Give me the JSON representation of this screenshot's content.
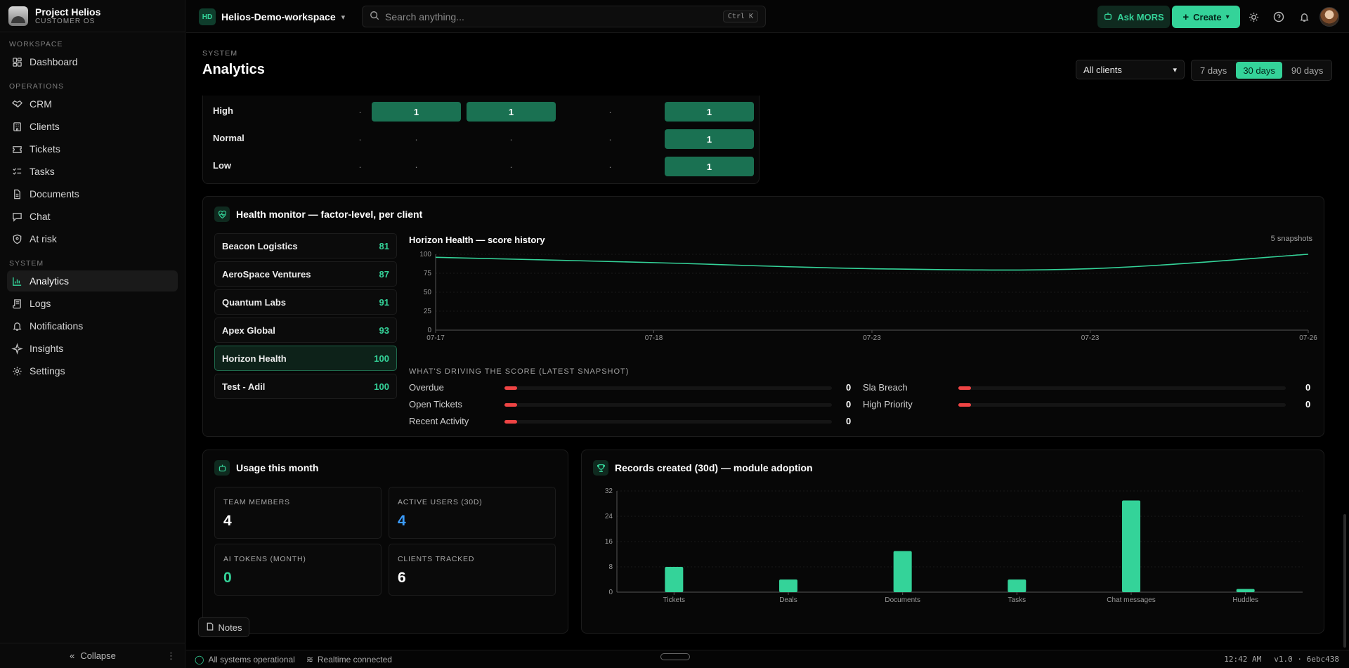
{
  "brand": {
    "name": "Project Helios",
    "subtitle": "CUSTOMER OS"
  },
  "sidebar": {
    "sections": [
      {
        "label": "WORKSPACE",
        "items": [
          {
            "label": "Dashboard",
            "icon": "dashboard-icon"
          }
        ]
      },
      {
        "label": "OPERATIONS",
        "items": [
          {
            "label": "CRM",
            "icon": "handshake-icon"
          },
          {
            "label": "Clients",
            "icon": "building-icon"
          },
          {
            "label": "Tickets",
            "icon": "ticket-icon"
          },
          {
            "label": "Tasks",
            "icon": "tasks-icon"
          },
          {
            "label": "Documents",
            "icon": "document-icon"
          },
          {
            "label": "Chat",
            "icon": "chat-icon"
          },
          {
            "label": "At risk",
            "icon": "shield-icon"
          }
        ]
      },
      {
        "label": "SYSTEM",
        "items": [
          {
            "label": "Analytics",
            "icon": "chart-icon",
            "active": true
          },
          {
            "label": "Logs",
            "icon": "logs-icon"
          },
          {
            "label": "Notifications",
            "icon": "bell-icon"
          },
          {
            "label": "Insights",
            "icon": "sparkle-icon"
          },
          {
            "label": "Settings",
            "icon": "gear-icon"
          }
        ]
      }
    ],
    "collapse_label": "Collapse"
  },
  "topbar": {
    "workspace_badge": "HD",
    "workspace_name": "Helios-Demo-workspace",
    "search_placeholder": "Search anything...",
    "search_shortcut": "Ctrl K",
    "ask_label": "Ask MORS",
    "create_label": "Create"
  },
  "page": {
    "kicker": "SYSTEM",
    "title": "Analytics",
    "client_filter": "All clients",
    "ranges": [
      "7 days",
      "30 days",
      "90 days"
    ],
    "active_range": "30 days"
  },
  "priority_grid": {
    "rows": [
      {
        "label": "High",
        "cells": [
          "·",
          "1",
          "1",
          "·",
          "1"
        ]
      },
      {
        "label": "Normal",
        "cells": [
          "·",
          "·",
          "·",
          "·",
          "1"
        ]
      },
      {
        "label": "Low",
        "cells": [
          "·",
          "·",
          "·",
          "·",
          "1"
        ]
      }
    ]
  },
  "health": {
    "title": "Health monitor — factor-level, per client",
    "clients": [
      {
        "name": "Beacon Logistics",
        "score": "81"
      },
      {
        "name": "AeroSpace Ventures",
        "score": "87"
      },
      {
        "name": "Quantum Labs",
        "score": "91"
      },
      {
        "name": "Apex Global",
        "score": "93"
      },
      {
        "name": "Horizon Health",
        "score": "100",
        "selected": true
      },
      {
        "name": "Test - Adil",
        "score": "100"
      }
    ],
    "history_title": "Horizon Health — score history",
    "history_count": "5 snapshots",
    "drivers_title": "WHAT'S DRIVING THE SCORE (LATEST SNAPSHOT)",
    "drivers": [
      {
        "label": "Overdue",
        "value": "0"
      },
      {
        "label": "Sla Breach",
        "value": "0"
      },
      {
        "label": "Open Tickets",
        "value": "0"
      },
      {
        "label": "High Priority",
        "value": "0"
      },
      {
        "label": "Recent Activity",
        "value": "0"
      }
    ]
  },
  "usage": {
    "title": "Usage this month",
    "stats": [
      {
        "label": "TEAM MEMBERS",
        "value": "4"
      },
      {
        "label": "ACTIVE USERS (30D)",
        "value": "4"
      },
      {
        "label": "AI TOKENS (MONTH)",
        "value": "0"
      },
      {
        "label": "CLIENTS TRACKED",
        "value": "6"
      }
    ]
  },
  "records": {
    "title": "Records created (30d) — module adoption"
  },
  "notes_label": "Notes",
  "statusbar": {
    "systems": "All systems operational",
    "realtime": "Realtime connected",
    "time": "12:42 AM",
    "version": "v1.0 · 6ebc438"
  },
  "colors": {
    "accent": "#34d399",
    "danger": "#ef4444",
    "info": "#3b9cff"
  },
  "chart_data": [
    {
      "type": "line",
      "title": "Horizon Health — score history",
      "x": [
        "07-17",
        "07-18",
        "07-23",
        "07-23",
        "07-26"
      ],
      "series": [
        {
          "values": [
            96,
            89,
            81,
            81,
            100
          ]
        }
      ],
      "ylim": [
        0,
        100
      ],
      "yticks": [
        0,
        25,
        50,
        75,
        100
      ],
      "grid": true
    },
    {
      "type": "bar",
      "title": "Records created (30d) — module adoption",
      "categories": [
        "Tickets",
        "Deals",
        "Documents",
        "Tasks",
        "Chat messages",
        "Huddles"
      ],
      "values": [
        8,
        4,
        13,
        4,
        29,
        1
      ],
      "ylim": [
        0,
        32
      ],
      "yticks": [
        0,
        8,
        16,
        24,
        32
      ],
      "grid": true
    }
  ]
}
